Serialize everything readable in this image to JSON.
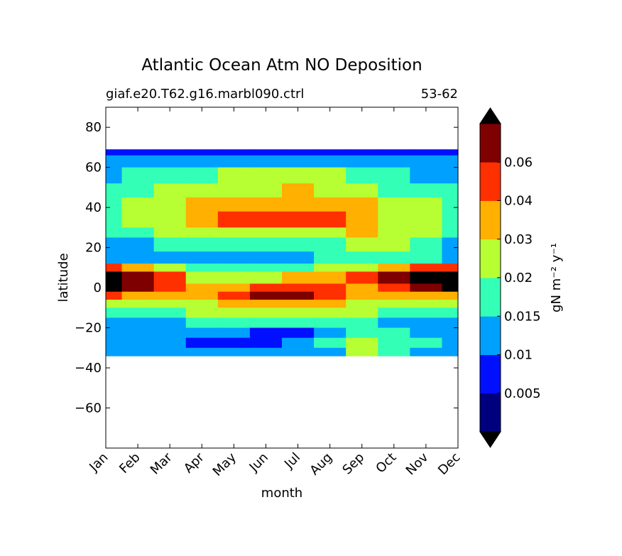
{
  "chart_data": {
    "type": "filled-contour",
    "title": "Atlantic Ocean Atm NO Deposition",
    "subtitle_left": "giaf.e20.T62.g16.marbl090.ctrl",
    "subtitle_right": "53-62",
    "xlabel": "month",
    "ylabel": "latitude",
    "xticks": [
      "Jan",
      "Feb",
      "Mar",
      "Apr",
      "May",
      "Jun",
      "Jul",
      "Aug",
      "Sep",
      "Oct",
      "Nov",
      "Dec"
    ],
    "yticks": [
      80,
      60,
      40,
      20,
      0,
      -20,
      -40,
      -60
    ],
    "ytick_labels": [
      "80",
      "60",
      "40",
      "20",
      "0",
      "−20",
      "−40",
      "−60"
    ],
    "ylim": [
      -80,
      90
    ],
    "data_lat_range": [
      -34,
      69
    ],
    "colorbar": {
      "label": "gN m⁻² y⁻¹",
      "levels": [
        0,
        0.005,
        0.01,
        0.015,
        0.02,
        0.03,
        0.04,
        0.06,
        0.07
      ],
      "tick_labels": [
        "0.005",
        "0.01",
        "0.015",
        "0.02",
        "0.03",
        "0.04",
        "0.06"
      ],
      "colors": [
        "#00007f",
        "#0010ff",
        "#00a0ff",
        "#33ffb7",
        "#b7ff33",
        "#ffb000",
        "#ff3000",
        "#7f0000"
      ],
      "under_color": "#000000",
      "over_color": "#000000",
      "extend": "both"
    },
    "bands": [
      {
        "lat_min": 66,
        "lat_max": 69,
        "level_by_month": [
          1,
          1,
          1,
          1,
          1,
          1,
          1,
          1,
          1,
          1,
          1,
          1
        ]
      },
      {
        "lat_min": 60,
        "lat_max": 66,
        "level_by_month": [
          2,
          2,
          2,
          2,
          2,
          2,
          2,
          2,
          2,
          2,
          2,
          2
        ]
      },
      {
        "lat_min": 52,
        "lat_max": 60,
        "level_by_month": [
          2,
          3,
          3,
          3,
          4,
          4,
          4,
          4,
          3,
          3,
          2,
          2
        ]
      },
      {
        "lat_min": 45,
        "lat_max": 52,
        "level_by_month": [
          3,
          3,
          4,
          4,
          4,
          4,
          5,
          4,
          4,
          3,
          3,
          3
        ]
      },
      {
        "lat_min": 38,
        "lat_max": 45,
        "level_by_month": [
          3,
          4,
          4,
          5,
          5,
          5,
          5,
          5,
          5,
          4,
          4,
          3
        ]
      },
      {
        "lat_min": 30,
        "lat_max": 38,
        "level_by_month": [
          3,
          4,
          4,
          5,
          6,
          6,
          6,
          6,
          5,
          4,
          4,
          3
        ]
      },
      {
        "lat_min": 25,
        "lat_max": 30,
        "level_by_month": [
          3,
          3,
          4,
          4,
          4,
          4,
          4,
          4,
          5,
          4,
          4,
          3
        ]
      },
      {
        "lat_min": 18,
        "lat_max": 25,
        "level_by_month": [
          2,
          2,
          3,
          3,
          3,
          3,
          3,
          3,
          4,
          4,
          3,
          2
        ]
      },
      {
        "lat_min": 12,
        "lat_max": 18,
        "level_by_month": [
          2,
          2,
          2,
          2,
          2,
          2,
          2,
          3,
          3,
          3,
          3,
          2
        ]
      },
      {
        "lat_min": 8,
        "lat_max": 12,
        "level_by_month": [
          6,
          5,
          4,
          3,
          3,
          3,
          3,
          4,
          4,
          5,
          6,
          6
        ]
      },
      {
        "lat_min": 2,
        "lat_max": 8,
        "level_by_month": [
          8,
          7,
          6,
          4,
          4,
          4,
          5,
          5,
          6,
          7,
          8,
          8
        ]
      },
      {
        "lat_min": -2,
        "lat_max": 2,
        "level_by_month": [
          8,
          7,
          6,
          5,
          5,
          6,
          6,
          6,
          5,
          6,
          7,
          8
        ]
      },
      {
        "lat_min": -6,
        "lat_max": -2,
        "level_by_month": [
          6,
          5,
          5,
          5,
          6,
          7,
          7,
          6,
          5,
          5,
          5,
          5
        ]
      },
      {
        "lat_min": -10,
        "lat_max": -6,
        "level_by_month": [
          4,
          4,
          4,
          4,
          5,
          5,
          5,
          5,
          4,
          4,
          4,
          4
        ]
      },
      {
        "lat_min": -15,
        "lat_max": -10,
        "level_by_month": [
          3,
          3,
          3,
          4,
          4,
          4,
          4,
          4,
          4,
          3,
          3,
          3
        ]
      },
      {
        "lat_min": -20,
        "lat_max": -15,
        "level_by_month": [
          2,
          2,
          2,
          3,
          3,
          3,
          3,
          3,
          3,
          2,
          2,
          2
        ]
      },
      {
        "lat_min": -25,
        "lat_max": -20,
        "level_by_month": [
          2,
          2,
          2,
          2,
          2,
          1,
          1,
          2,
          3,
          3,
          2,
          2
        ]
      },
      {
        "lat_min": -30,
        "lat_max": -25,
        "level_by_month": [
          2,
          2,
          2,
          1,
          1,
          1,
          2,
          3,
          4,
          3,
          3,
          2
        ]
      },
      {
        "lat_min": -34,
        "lat_max": -30,
        "level_by_month": [
          2,
          2,
          2,
          2,
          2,
          2,
          2,
          2,
          4,
          3,
          2,
          2
        ]
      }
    ]
  }
}
